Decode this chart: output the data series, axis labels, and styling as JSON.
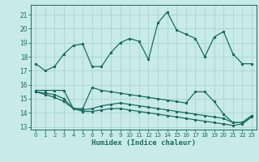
{
  "title": "",
  "xlabel": "Humidex (Indice chaleur)",
  "background_color": "#c8eaea",
  "grid_color": "#a8d4d0",
  "line_color": "#1a6b60",
  "xlim": [
    -0.5,
    23.5
  ],
  "ylim": [
    12.8,
    21.7
  ],
  "yticks": [
    13,
    14,
    15,
    16,
    17,
    18,
    19,
    20,
    21
  ],
  "xticks": [
    0,
    1,
    2,
    3,
    4,
    5,
    6,
    7,
    8,
    9,
    10,
    11,
    12,
    13,
    14,
    15,
    16,
    17,
    18,
    19,
    20,
    21,
    22,
    23
  ],
  "series1_x": [
    0,
    1,
    2,
    3,
    4,
    5,
    6,
    7,
    8,
    9,
    10,
    11,
    12,
    13,
    14,
    15,
    16,
    17,
    18,
    19,
    20,
    21,
    22,
    23
  ],
  "series1_y": [
    17.5,
    17.0,
    17.3,
    18.2,
    18.8,
    18.9,
    17.3,
    17.3,
    18.3,
    19.0,
    19.3,
    19.1,
    17.8,
    20.4,
    21.2,
    19.9,
    19.6,
    19.3,
    18.0,
    19.4,
    19.8,
    18.2,
    17.5,
    17.5
  ],
  "series2_x": [
    0,
    1,
    2,
    3,
    4,
    5,
    6,
    7,
    8,
    9,
    10,
    11,
    12,
    13,
    14,
    15,
    16,
    17,
    18,
    19,
    20,
    21,
    22,
    23
  ],
  "series2_y": [
    15.6,
    15.6,
    15.6,
    15.6,
    14.3,
    14.3,
    15.8,
    15.6,
    15.5,
    15.4,
    15.3,
    15.2,
    15.1,
    15.0,
    14.9,
    14.8,
    14.7,
    15.5,
    15.5,
    14.8,
    13.9,
    13.3,
    13.3,
    13.8
  ],
  "series3_x": [
    0,
    1,
    2,
    3,
    4,
    5,
    6,
    7,
    8,
    9,
    10,
    11,
    12,
    13,
    14,
    15,
    16,
    17,
    18,
    19,
    20,
    21,
    22,
    23
  ],
  "series3_y": [
    15.5,
    15.4,
    15.3,
    15.0,
    14.3,
    14.2,
    14.3,
    14.5,
    14.6,
    14.7,
    14.6,
    14.5,
    14.4,
    14.3,
    14.2,
    14.1,
    14.0,
    13.9,
    13.8,
    13.7,
    13.6,
    13.3,
    13.3,
    13.8
  ],
  "series4_x": [
    0,
    1,
    2,
    3,
    4,
    5,
    6,
    7,
    8,
    9,
    10,
    11,
    12,
    13,
    14,
    15,
    16,
    17,
    18,
    19,
    20,
    21,
    22,
    23
  ],
  "series4_y": [
    15.5,
    15.3,
    15.1,
    14.8,
    14.3,
    14.1,
    14.1,
    14.2,
    14.3,
    14.3,
    14.2,
    14.1,
    14.0,
    13.9,
    13.8,
    13.7,
    13.6,
    13.5,
    13.4,
    13.3,
    13.2,
    13.1,
    13.2,
    13.7
  ]
}
